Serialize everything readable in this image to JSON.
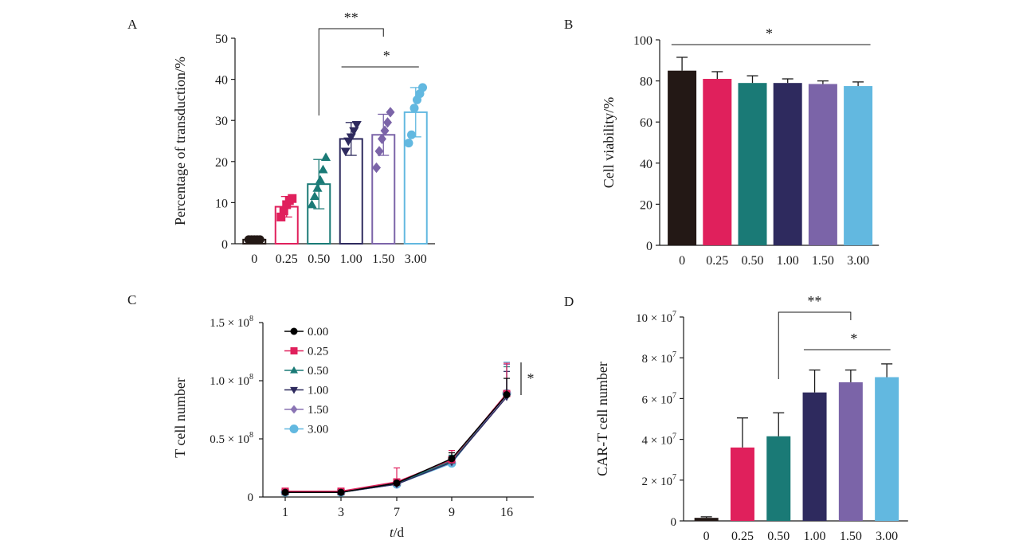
{
  "panels": {
    "A": "A",
    "B": "B",
    "C": "C",
    "D": "D"
  },
  "colors": {
    "c0": "#231815",
    "c025": "#e0205c",
    "c050": "#1a7a76",
    "c100": "#2e2a5e",
    "c150": "#7b64a8",
    "c300": "#62b8e0",
    "line0": "#000000",
    "line025": "#e0205c",
    "line050": "#1a7a76",
    "line100": "#2e2a5e",
    "line150": "#8a74b4",
    "line300": "#62b8e0"
  },
  "chart_data": [
    {
      "panel": "A",
      "type": "bar",
      "style": "hollow bars with individual points",
      "categories": [
        "0",
        "0.25",
        "0.50",
        "1.00",
        "1.50",
        "3.00"
      ],
      "values": [
        1,
        9,
        14.5,
        25.5,
        26.5,
        32
      ],
      "errors": [
        0.5,
        2.5,
        6,
        4,
        5,
        6
      ],
      "points": [
        [
          1,
          1,
          1,
          1,
          1
        ],
        [
          6.5,
          8,
          9.5,
          10.5,
          11
        ],
        [
          9.5,
          11.5,
          13.5,
          15.5,
          18,
          21
        ],
        [
          22.5,
          25,
          26,
          27.5,
          29
        ],
        [
          18.5,
          22.5,
          25.5,
          27.5,
          29.5,
          32
        ],
        [
          24.5,
          26.5,
          33,
          35,
          36.5,
          38
        ]
      ],
      "markers": [
        "circle",
        "square",
        "triangle-up",
        "triangle-down",
        "diamond",
        "circle"
      ],
      "ylabel": "Percentage of transduction/%",
      "yticks": [
        "0",
        "10",
        "20",
        "30",
        "40",
        "50"
      ],
      "ylim": [
        0,
        50
      ],
      "significance": [
        {
          "from": "0.50",
          "to": "1.50",
          "label": "**",
          "type": "bracket"
        },
        {
          "from": "1.00",
          "to": "3.00",
          "label": "*",
          "type": "line"
        }
      ]
    },
    {
      "panel": "B",
      "type": "bar",
      "categories": [
        "0",
        "0.25",
        "0.50",
        "1.00",
        "1.50",
        "3.00"
      ],
      "values": [
        85,
        81,
        79,
        79,
        78.5,
        77.5
      ],
      "errors": [
        6.5,
        3.5,
        3.5,
        2,
        1.5,
        2
      ],
      "ylabel": "Cell viability/%",
      "yticks": [
        "0",
        "20",
        "40",
        "60",
        "80",
        "100"
      ],
      "ylim": [
        0,
        100
      ],
      "significance": [
        {
          "from": "0",
          "to": "3.00",
          "label": "*",
          "type": "line"
        }
      ]
    },
    {
      "panel": "C",
      "type": "line",
      "x": [
        "1",
        "3",
        "7",
        "9",
        "16"
      ],
      "series": [
        {
          "name": "0.00",
          "marker": "circle",
          "values": [
            0.04,
            0.04,
            0.12,
            0.33,
            0.88
          ],
          "upper": [
            0.04,
            0.05,
            0.13,
            0.38,
            1.02
          ]
        },
        {
          "name": "0.25",
          "marker": "square",
          "values": [
            0.05,
            0.05,
            0.13,
            0.32,
            0.89
          ],
          "upper": [
            0.05,
            0.06,
            0.25,
            0.4,
            1.15
          ]
        },
        {
          "name": "0.50",
          "marker": "triangle-up",
          "values": [
            0.04,
            0.04,
            0.12,
            0.31,
            0.89
          ],
          "upper": [
            0.04,
            0.05,
            0.14,
            0.36,
            1.12
          ]
        },
        {
          "name": "1.00",
          "marker": "triangle-down",
          "values": [
            0.04,
            0.04,
            0.11,
            0.3,
            0.86
          ],
          "upper": [
            0.04,
            0.05,
            0.13,
            0.34,
            1.08
          ]
        },
        {
          "name": "1.50",
          "marker": "diamond",
          "values": [
            0.04,
            0.04,
            0.11,
            0.3,
            0.88
          ],
          "upper": [
            0.04,
            0.05,
            0.13,
            0.35,
            1.14
          ]
        },
        {
          "name": "3.00",
          "marker": "circle",
          "values": [
            0.04,
            0.04,
            0.11,
            0.29,
            0.89
          ],
          "upper": [
            0.04,
            0.05,
            0.13,
            0.34,
            1.16
          ]
        }
      ],
      "xlabel_italic": "t",
      "xlabel_rest": "/d",
      "ylabel": "T cell number",
      "yticks": [
        {
          "mant": "0",
          "exp": ""
        },
        {
          "mant": "0.5 × 10",
          "exp": "8"
        },
        {
          "mant": "1.0 × 10",
          "exp": "8"
        },
        {
          "mant": "1.5 × 10",
          "exp": "8"
        }
      ],
      "ylim": [
        0,
        1.5
      ],
      "legend_position": "top-left",
      "significance": [
        {
          "label": "*",
          "type": "vertical"
        }
      ]
    },
    {
      "panel": "D",
      "type": "bar",
      "categories": [
        "0",
        "0.25",
        "0.50",
        "1.00",
        "1.50",
        "3.00"
      ],
      "values": [
        0.15,
        3.6,
        4.15,
        6.3,
        6.8,
        7.05
      ],
      "errors": [
        0.05,
        1.45,
        1.15,
        1.1,
        0.6,
        0.65
      ],
      "ylabel": "CAR-T cell number",
      "yticks": [
        {
          "mant": "0",
          "exp": ""
        },
        {
          "mant": "2 × 10",
          "exp": "7"
        },
        {
          "mant": "4 × 10",
          "exp": "7"
        },
        {
          "mant": "6 × 10",
          "exp": "7"
        },
        {
          "mant": "8 × 10",
          "exp": "7"
        },
        {
          "mant": "10 × 10",
          "exp": "7"
        }
      ],
      "ylim": [
        0,
        10
      ],
      "significance": [
        {
          "from": "0.50",
          "to": "1.50",
          "label": "**",
          "type": "bracket"
        },
        {
          "from": "1.00",
          "to": "3.00",
          "label": "*",
          "type": "line"
        }
      ]
    }
  ]
}
